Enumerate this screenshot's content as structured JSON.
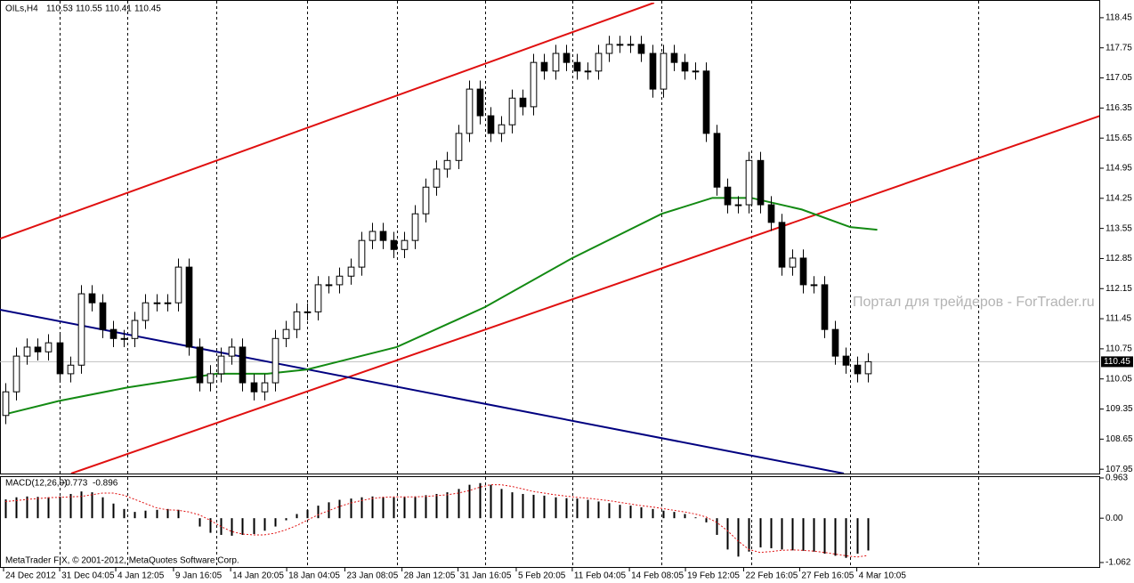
{
  "chart_data": {
    "type": "candlestick",
    "header_symbol": "OILs,H4",
    "header_ohlc": [
      110.53,
      110.55,
      110.41,
      110.45
    ],
    "watermark": "Портал для трейдеров - ForTrader.ru",
    "copyright": "MetaTrader FIX, © 2001-2012, MetaQuotes Software Corp.",
    "colors": {
      "up": "#ffffff",
      "down": "#000000",
      "outline": "#000000",
      "ma": "#138a13",
      "macd": "#000000",
      "signal": "#e01010",
      "last": "#c0c0c0"
    },
    "xlim": [
      -0.5,
      101.5
    ],
    "ylim": [
      107.85,
      118.8
    ],
    "yticks": [
      118.45,
      117.75,
      117.05,
      116.35,
      115.65,
      114.95,
      114.25,
      113.55,
      112.85,
      112.15,
      111.45,
      110.75,
      110.05,
      109.35,
      108.65,
      107.95
    ],
    "xticks": [
      {
        "value": -0.17,
        "label": "24 Dec 2012"
      },
      {
        "value": 5.04,
        "label": "31 Dec 04:05"
      },
      {
        "value": 10.24,
        "label": "4 Jan 12:05"
      },
      {
        "value": 15.6,
        "label": "9 Jan 16:05"
      },
      {
        "value": 20.9,
        "label": "14 Jan 20:05"
      },
      {
        "value": 26.1,
        "label": "18 Jan 04:05"
      },
      {
        "value": 31.5,
        "label": "23 Jan 08:05"
      },
      {
        "value": 36.8,
        "label": "28 Jan 12:05"
      },
      {
        "value": 42,
        "label": "31 Jan 16:05"
      },
      {
        "value": 47.4,
        "label": "5 Feb 20:05"
      },
      {
        "value": 52.6,
        "label": "11 Feb 04:05"
      },
      {
        "value": 57.9,
        "label": "14 Feb 08:05"
      },
      {
        "value": 63.1,
        "label": "19 Feb 12:05"
      },
      {
        "value": 68.5,
        "label": "22 Feb 16:05"
      },
      {
        "value": 73.7,
        "label": "27 Feb 16:05"
      },
      {
        "value": 79,
        "label": "4 Mar 10:05"
      }
    ],
    "xgrid": [
      5.04,
      11.3,
      19.6,
      28,
      36.3,
      44.5,
      52.6,
      60.9,
      69.2,
      78.4,
      90.3
    ],
    "last_price": 110.45,
    "ohlc": {
      "open": [
        109.2,
        109.75,
        110.58,
        110.79,
        110.68,
        110.89,
        110.17,
        110.37,
        112.03,
        111.82,
        111.2,
        110.99,
        110.99,
        111.41,
        111.82,
        111.82,
        111.82,
        112.65,
        110.79,
        109.96,
        110.17,
        110.58,
        110.79,
        109.96,
        109.75,
        109.96,
        110.99,
        111.2,
        111.61,
        111.61,
        112.24,
        112.24,
        112.44,
        112.65,
        113.27,
        113.48,
        113.27,
        113.06,
        113.27,
        113.89,
        114.51,
        114.93,
        115.13,
        115.76,
        116.79,
        116.17,
        115.76,
        115.96,
        116.58,
        116.38,
        117.41,
        117.21,
        117.62,
        117.41,
        117.21,
        117.21,
        117.62,
        117.83,
        117.83,
        117.83,
        117.62,
        116.79,
        117.62,
        117.41,
        117.21,
        117.21,
        115.76,
        114.51,
        114.1,
        114.1,
        115.13,
        114.1,
        113.69,
        112.65,
        112.86,
        112.24,
        112.24,
        111.2,
        110.58,
        110.37,
        110.17
      ],
      "high": [
        109.95,
        110.78,
        110.99,
        110.99,
        111.09,
        111.09,
        110.57,
        112.23,
        112.23,
        112.02,
        111.4,
        111.19,
        111.61,
        112.02,
        112.02,
        112.02,
        112.85,
        112.85,
        110.99,
        110.37,
        110.78,
        110.99,
        110.99,
        110.16,
        110.16,
        111.19,
        111.4,
        111.81,
        111.81,
        112.44,
        112.44,
        112.64,
        112.85,
        113.47,
        113.68,
        113.68,
        113.47,
        113.47,
        114.09,
        114.71,
        115.13,
        115.33,
        115.96,
        116.99,
        116.99,
        116.37,
        116.16,
        116.78,
        116.78,
        117.61,
        117.61,
        117.82,
        117.82,
        117.61,
        117.41,
        117.82,
        118.03,
        118.03,
        118.03,
        118.03,
        117.82,
        117.82,
        117.82,
        117.61,
        117.41,
        117.41,
        115.96,
        114.71,
        114.3,
        115.33,
        115.33,
        114.3,
        113.89,
        113.06,
        113.06,
        112.44,
        112.44,
        111.4,
        110.78,
        110.57,
        110.65
      ],
      "low": [
        109.0,
        109.55,
        110.38,
        110.48,
        110.48,
        109.97,
        109.97,
        110.17,
        111.62,
        111.0,
        110.79,
        110.79,
        110.79,
        111.21,
        111.62,
        111.62,
        111.62,
        110.59,
        109.76,
        109.76,
        109.97,
        110.38,
        109.76,
        109.55,
        109.55,
        109.76,
        110.79,
        111.0,
        111.41,
        111.41,
        112.04,
        112.04,
        112.24,
        112.45,
        113.07,
        113.07,
        112.86,
        112.86,
        113.07,
        113.69,
        114.31,
        114.73,
        114.93,
        115.56,
        115.97,
        115.56,
        115.56,
        115.76,
        116.18,
        116.18,
        117.01,
        117.01,
        117.21,
        117.01,
        117.01,
        117.01,
        117.42,
        117.63,
        117.63,
        117.42,
        116.59,
        116.59,
        117.21,
        117.01,
        117.01,
        115.56,
        114.31,
        113.9,
        113.9,
        113.9,
        113.9,
        113.49,
        112.45,
        112.45,
        112.04,
        112.04,
        111.0,
        110.38,
        110.17,
        109.97,
        109.97
      ],
      "close": [
        109.75,
        110.58,
        110.79,
        110.68,
        110.89,
        110.17,
        110.37,
        112.03,
        111.82,
        111.2,
        110.99,
        110.99,
        111.41,
        111.82,
        111.82,
        111.82,
        112.65,
        110.79,
        109.96,
        110.17,
        110.58,
        110.79,
        109.96,
        109.75,
        109.96,
        110.99,
        111.2,
        111.61,
        111.61,
        112.24,
        112.24,
        112.44,
        112.65,
        113.27,
        113.48,
        113.27,
        113.06,
        113.27,
        113.89,
        114.51,
        114.93,
        115.13,
        115.76,
        116.79,
        116.17,
        115.76,
        115.96,
        116.58,
        116.38,
        117.41,
        117.21,
        117.62,
        117.41,
        117.21,
        117.21,
        117.62,
        117.83,
        117.83,
        117.83,
        117.62,
        116.79,
        117.62,
        117.41,
        117.21,
        117.21,
        115.76,
        114.51,
        114.1,
        114.1,
        115.13,
        114.1,
        113.69,
        112.65,
        112.86,
        112.24,
        112.24,
        111.2,
        110.58,
        110.37,
        110.17,
        110.45
      ]
    },
    "ma": {
      "x": [
        0,
        5,
        11.3,
        19.6,
        24.3,
        28,
        36.3,
        44.5,
        52.6,
        60.9,
        65.6,
        69.2,
        73.9,
        78.4,
        80.9
      ],
      "values": [
        109.23,
        109.54,
        109.85,
        110.17,
        110.17,
        110.27,
        110.79,
        111.72,
        112.86,
        113.89,
        114.26,
        114.26,
        113.99,
        113.58,
        113.52
      ]
    },
    "trendlines": [
      {
        "color": "#e01010",
        "x": [
          -0.5,
          60.2
        ],
        "values": [
          113.31,
          118.8
        ]
      },
      {
        "color": "#e01010",
        "x": [
          6.1,
          101.6
        ],
        "values": [
          107.85,
          116.17
        ]
      },
      {
        "color": "#000080",
        "x": [
          -0.5,
          77.8
        ],
        "values": [
          111.66,
          107.85
        ]
      }
    ],
    "macd": {
      "label": "MACD(12,26,9)",
      "current": [
        -0.773,
        -0.896
      ],
      "ylim": [
        -1.062,
        0.963
      ],
      "yticks": [
        0.963,
        {
          "value": 0,
          "label": "0.00"
        },
        -1.062
      ],
      "histogram": [
        0.45,
        0.5,
        0.52,
        0.51,
        0.5,
        0.52,
        0.58,
        0.64,
        0.62,
        0.5,
        0.35,
        0.22,
        0.15,
        0.18,
        0.2,
        0.22,
        0.2,
        0.0,
        -0.2,
        -0.35,
        -0.4,
        -0.42,
        -0.4,
        -0.38,
        -0.3,
        -0.2,
        -0.05,
        0.1,
        0.2,
        0.3,
        0.38,
        0.44,
        0.47,
        0.5,
        0.52,
        0.51,
        0.5,
        0.51,
        0.52,
        0.55,
        0.58,
        0.62,
        0.7,
        0.8,
        0.84,
        0.8,
        0.7,
        0.62,
        0.58,
        0.56,
        0.54,
        0.5,
        0.48,
        0.47,
        0.44,
        0.4,
        0.36,
        0.32,
        0.3,
        0.26,
        0.22,
        0.18,
        0.15,
        0.1,
        0.02,
        -0.1,
        -0.4,
        -0.75,
        -0.92,
        -0.8,
        -0.7,
        -0.72,
        -0.75,
        -0.77,
        -0.78,
        -0.8,
        -0.85,
        -0.9,
        -0.95,
        -0.85,
        -0.773
      ],
      "signal": [
        0.4,
        0.42,
        0.45,
        0.47,
        0.49,
        0.5,
        0.51,
        0.52,
        0.56,
        0.6,
        0.6,
        0.55,
        0.45,
        0.35,
        0.25,
        0.2,
        0.19,
        0.15,
        0.08,
        -0.05,
        -0.2,
        -0.32,
        -0.38,
        -0.4,
        -0.4,
        -0.36,
        -0.28,
        -0.18,
        -0.05,
        0.08,
        0.18,
        0.28,
        0.36,
        0.42,
        0.47,
        0.5,
        0.51,
        0.51,
        0.51,
        0.52,
        0.54,
        0.56,
        0.6,
        0.66,
        0.74,
        0.8,
        0.8,
        0.76,
        0.7,
        0.64,
        0.6,
        0.56,
        0.53,
        0.5,
        0.48,
        0.45,
        0.42,
        0.38,
        0.34,
        0.3,
        0.27,
        0.23,
        0.19,
        0.15,
        0.1,
        0.03,
        -0.1,
        -0.3,
        -0.55,
        -0.75,
        -0.82,
        -0.8,
        -0.77,
        -0.76,
        -0.77,
        -0.79,
        -0.82,
        -0.86,
        -0.9,
        -0.93,
        -0.896
      ]
    }
  }
}
